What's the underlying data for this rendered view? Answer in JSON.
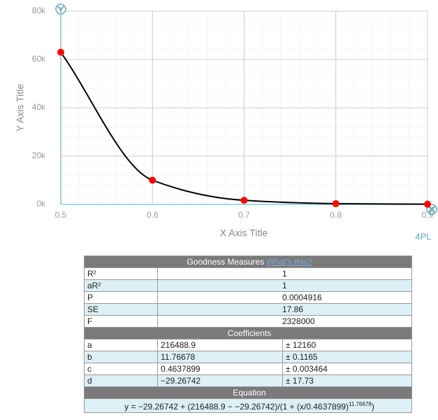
{
  "chart_data": {
    "type": "scatter-curve",
    "x_label": "X Axis Title",
    "y_label": "Y Axis Title",
    "model_label": "4PL",
    "x": [
      0.5,
      0.6,
      0.7,
      0.8,
      0.9
    ],
    "values": [
      63000,
      10000,
      1700,
      300,
      100
    ],
    "color": "#ff0000",
    "line_color": "#000000",
    "xlim": [
      0.5,
      0.9
    ],
    "xticks": [
      0.5,
      0.6,
      0.7,
      0.8,
      0.9
    ],
    "ylim": [
      0,
      80000
    ],
    "yticks": [
      {
        "value": 0,
        "label": "0k"
      },
      {
        "value": 20000,
        "label": "20k"
      },
      {
        "value": 40000,
        "label": "40k"
      },
      {
        "value": 60000,
        "label": "60k"
      },
      {
        "value": 80000,
        "label": "80k"
      }
    ],
    "grid": true
  },
  "table": {
    "header": "Goodness Measures",
    "link": "What's this?",
    "goodness": [
      [
        "R²",
        "1"
      ],
      [
        "aR²",
        "1"
      ],
      [
        "P",
        "0.0004916"
      ],
      [
        "SE",
        "17.86"
      ],
      [
        "F",
        "2328000"
      ]
    ],
    "coefficients_header": "Coefficients",
    "coefficients": [
      [
        "a",
        "216488.9",
        "± 12160"
      ],
      [
        "b",
        "11.76678",
        "± 0.1165"
      ],
      [
        "c",
        "0.4637899",
        "± 0.003464"
      ],
      [
        "d",
        "−29.26742",
        "± 17.73"
      ]
    ],
    "equation_header": "Equation",
    "equation": {
      "text": "y = −29.26742 + (216488.9 − −29.26742)/(1 + (x/0.4637899)",
      "exponent": "11.76678",
      "close": ")"
    }
  }
}
